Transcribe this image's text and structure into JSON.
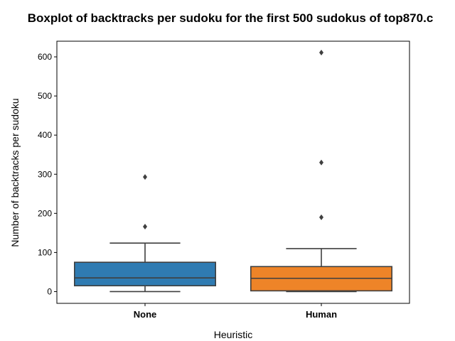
{
  "chart_data": {
    "type": "boxplot",
    "title": "Boxplot of backtracks per sudoku for the first 500 sudokus of top870.c",
    "xlabel": "Heuristic",
    "ylabel": "Number of backtracks per sudoku",
    "ylim": [
      -30,
      640
    ],
    "yticks": [
      0,
      100,
      200,
      300,
      400,
      500,
      600
    ],
    "categories": [
      "None",
      "Human"
    ],
    "boxes": [
      {
        "category": "None",
        "color": "#2f7bb2",
        "whisker_low": 0,
        "q1": 15,
        "median": 35,
        "q3": 75,
        "whisker_high": 124,
        "outliers": [
          166,
          293
        ]
      },
      {
        "category": "Human",
        "color": "#ee8428",
        "whisker_low": 0,
        "q1": 2,
        "median": 34,
        "q3": 64,
        "whisker_high": 110,
        "outliers": [
          190,
          330,
          611
        ]
      }
    ],
    "grid": false,
    "legend": "none"
  }
}
